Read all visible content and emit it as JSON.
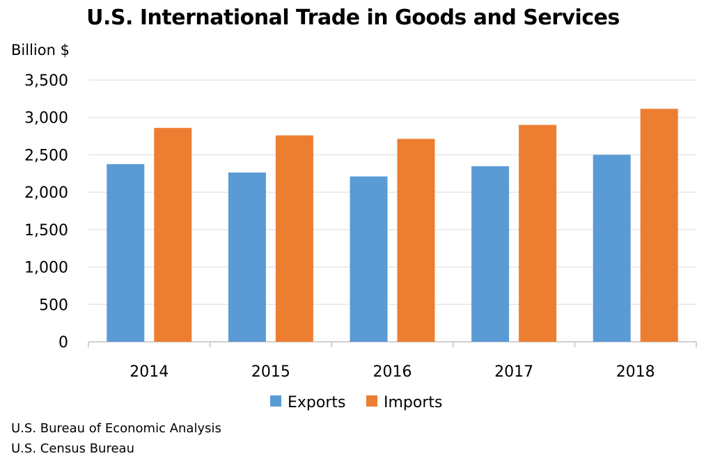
{
  "chart_data": {
    "type": "bar",
    "title": "U.S. International Trade in Goods and Services",
    "ylabel": "Billion $",
    "xlabel": "",
    "categories": [
      "2014",
      "2015",
      "2016",
      "2017",
      "2018"
    ],
    "series": [
      {
        "name": "Exports",
        "color": "#5B9BD5",
        "values": [
          2376,
          2264,
          2211,
          2348,
          2501
        ]
      },
      {
        "name": "Imports",
        "color": "#ED7D31",
        "values": [
          2860,
          2760,
          2714,
          2900,
          3115
        ]
      }
    ],
    "ylim": [
      0,
      3500
    ],
    "yticks": [
      "0",
      "500",
      "1,000",
      "1,500",
      "2,000",
      "2,500",
      "3,000",
      "3,500"
    ],
    "ytick_values": [
      0,
      500,
      1000,
      1500,
      2000,
      2500,
      3000,
      3500
    ],
    "grid": true,
    "legend": "bottom-center"
  },
  "sources": [
    "U.S. Bureau of Economic Analysis",
    "U.S. Census Bureau"
  ]
}
